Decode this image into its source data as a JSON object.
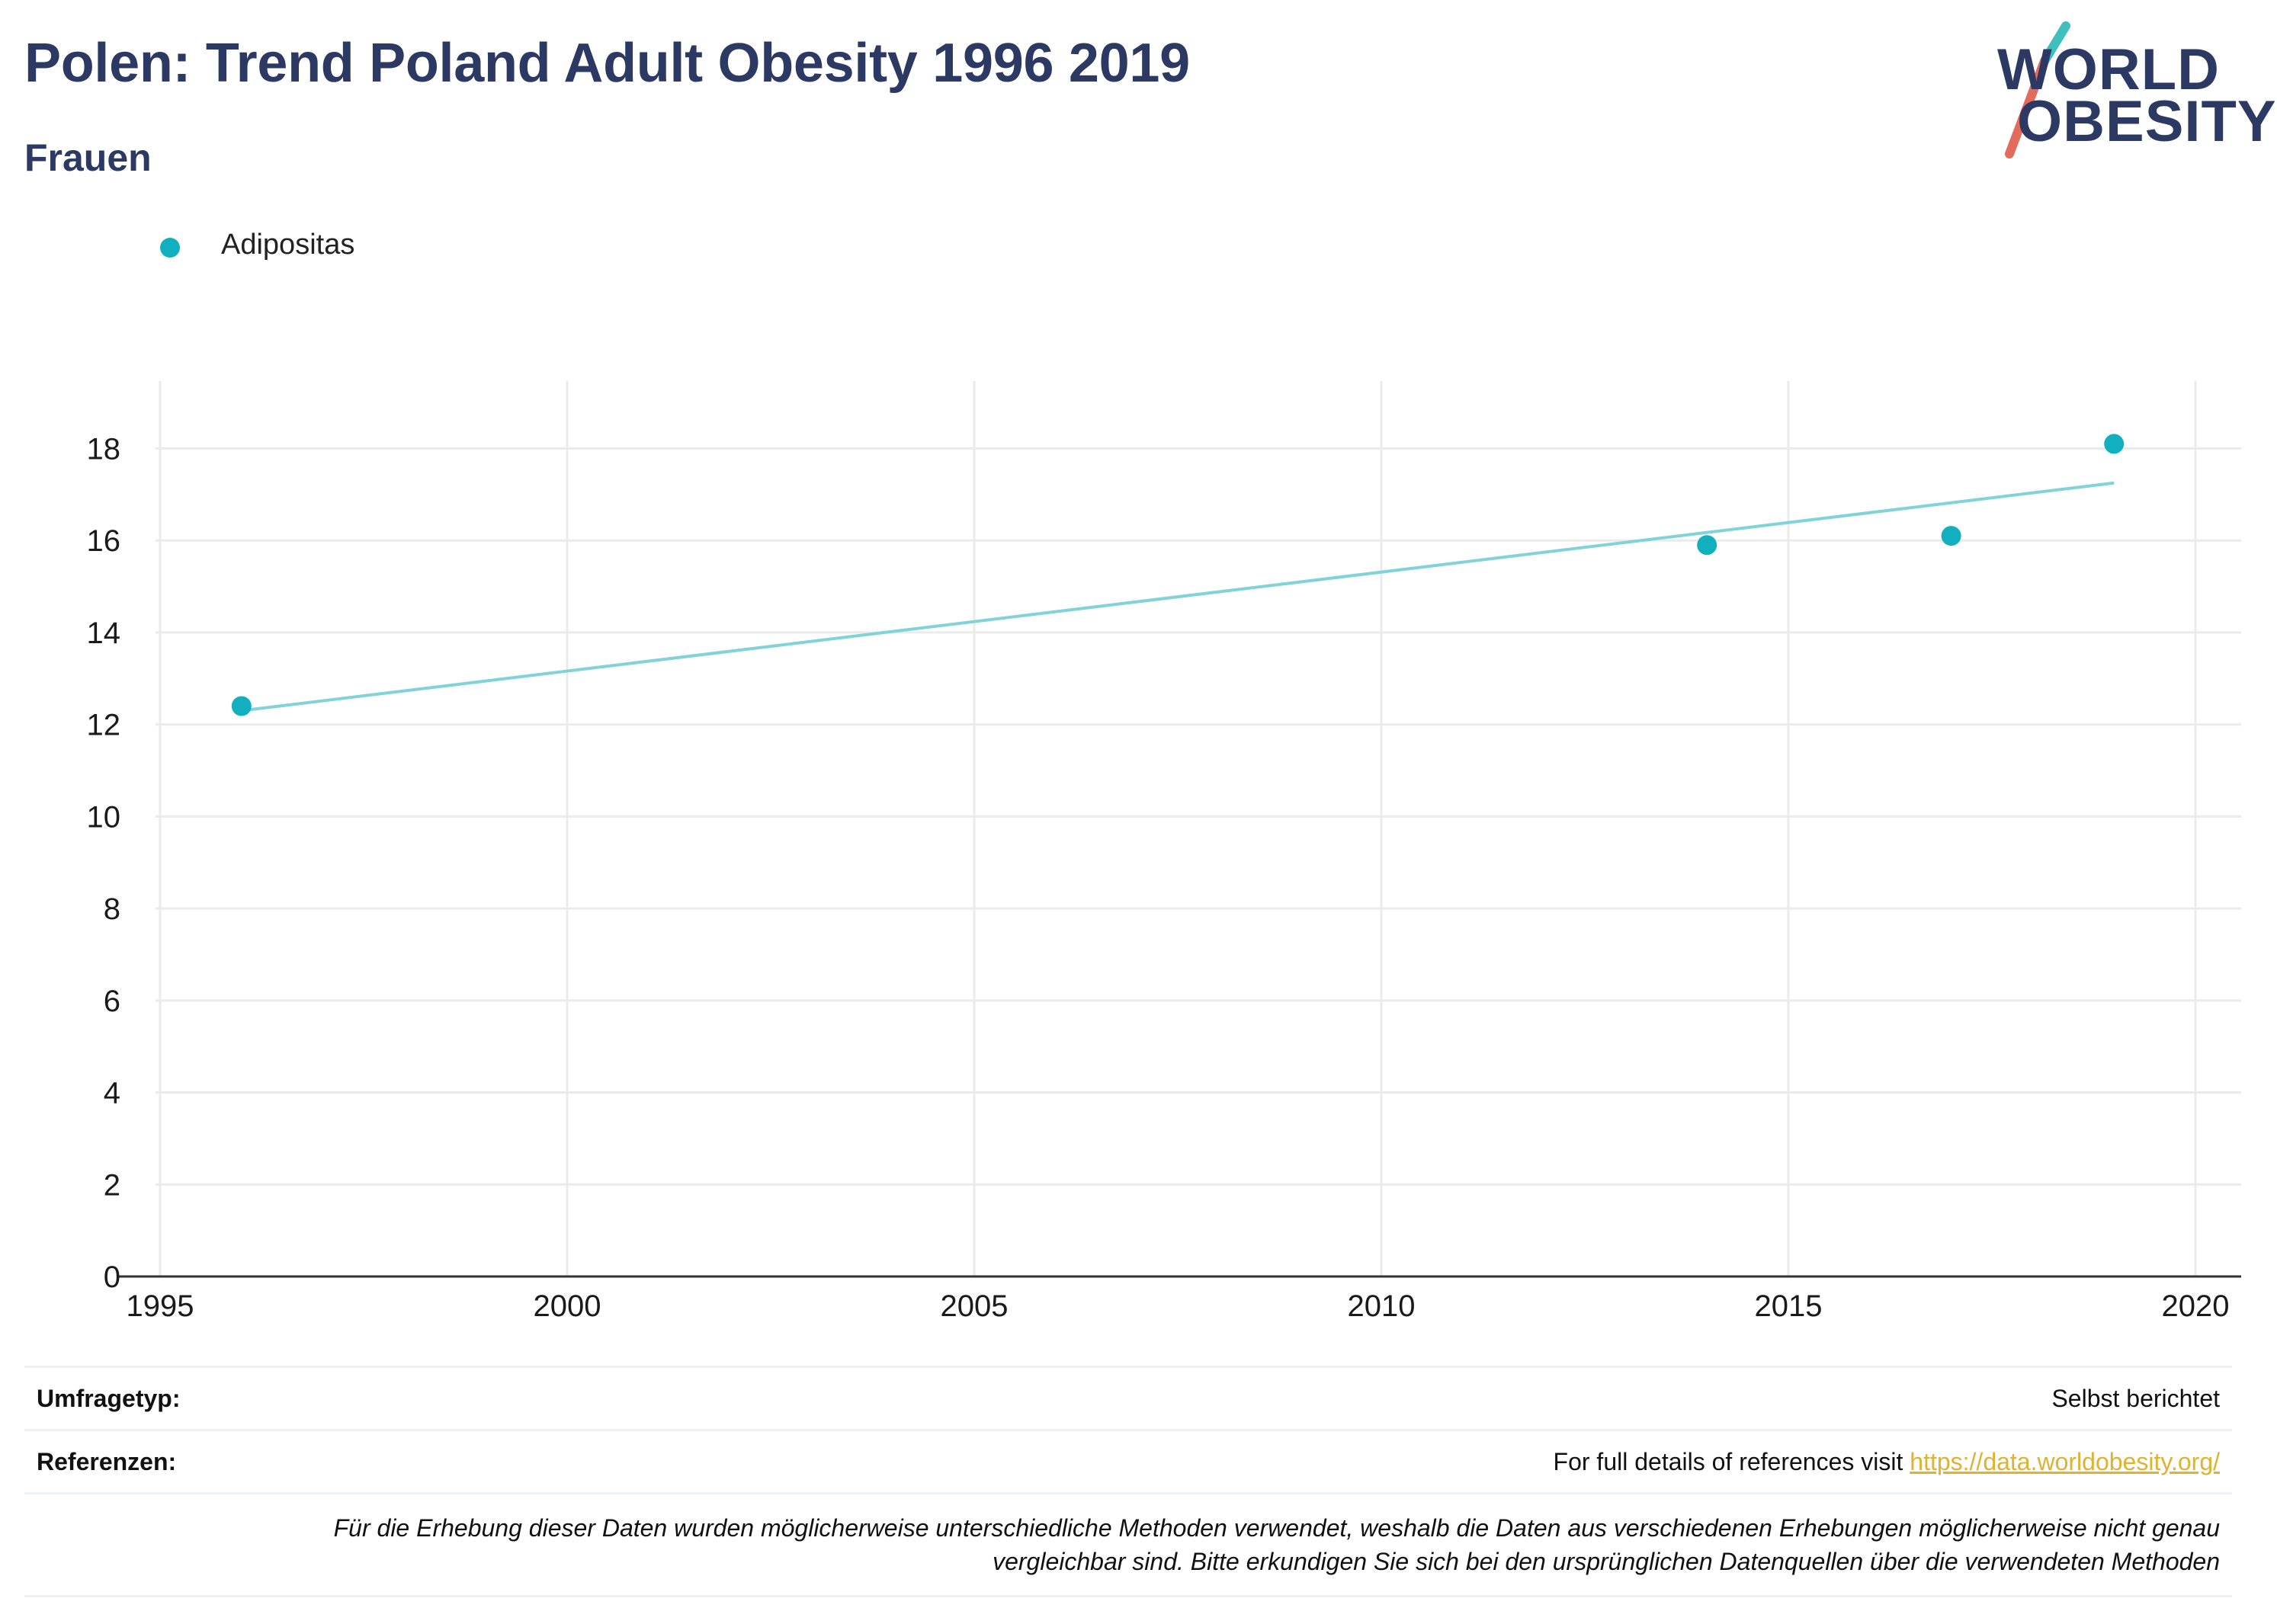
{
  "header": {
    "title": "Polen: Trend Poland Adult Obesity 1996 2019",
    "subtitle": "Frauen"
  },
  "logo": {
    "line1": "WORLD",
    "line2": "OBESITY",
    "text_color": "#2c3a63",
    "slash_colors": [
      "#3fbfbd",
      "#e26b5b"
    ]
  },
  "legend": {
    "items": [
      {
        "label": "Adipositas",
        "color": "#12afbe"
      }
    ]
  },
  "chart_data": {
    "type": "scatter",
    "title": "",
    "xlabel": "",
    "ylabel": "",
    "xlim": [
      1995,
      2020
    ],
    "ylim": [
      0,
      19.3
    ],
    "xticks": [
      1995,
      2000,
      2005,
      2010,
      2015,
      2020
    ],
    "yticks": [
      0,
      2,
      4,
      6,
      8,
      10,
      12,
      14,
      16,
      18
    ],
    "grid": true,
    "legend_position": "top-left",
    "series": [
      {
        "name": "Adipositas",
        "color": "#12afbe",
        "points": [
          {
            "x": 1996,
            "y": 12.4
          },
          {
            "x": 2014,
            "y": 15.9
          },
          {
            "x": 2017,
            "y": 16.1
          },
          {
            "x": 2019,
            "y": 18.1
          }
        ]
      }
    ],
    "trendline": {
      "color": "#7fd3d9",
      "points": [
        {
          "x": 1996,
          "y": 12.3
        },
        {
          "x": 2019,
          "y": 17.25
        }
      ]
    }
  },
  "info": {
    "survey_key": "Umfragetyp:",
    "survey_value": "Selbst berichtet",
    "refs_key": "Referenzen:",
    "refs_text": "For full details of references visit ",
    "refs_link": "https://data.worldobesity.org/",
    "note_line1": "Für die Erhebung dieser Daten wurden möglicherweise unterschiedliche Methoden verwendet, weshalb die Daten aus verschiedenen Erhebungen möglicherweise nicht genau",
    "note_line2": "vergleichbar sind. Bitte erkundigen Sie sich bei den ursprünglichen Datenquellen über die verwendeten Methoden"
  }
}
